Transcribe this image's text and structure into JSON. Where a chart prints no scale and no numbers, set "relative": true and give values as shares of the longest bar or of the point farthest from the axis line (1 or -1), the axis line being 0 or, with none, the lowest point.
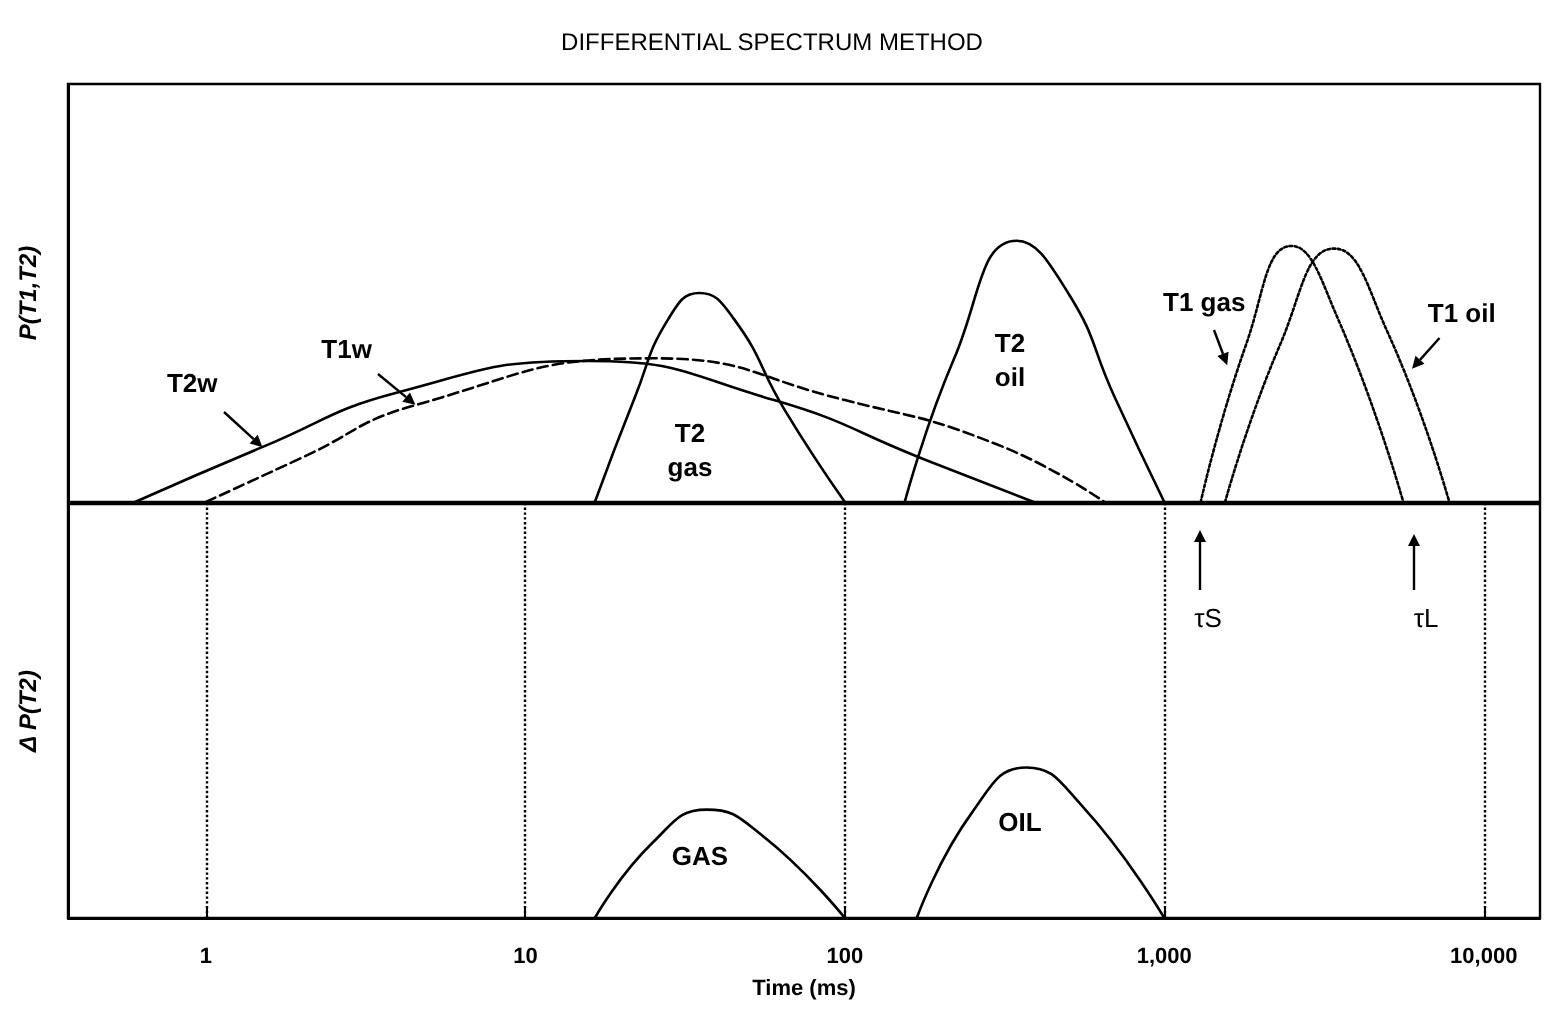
{
  "chart_data": [
    {
      "type": "line",
      "title": "DIFFERENTIAL SPECTRUM METHOD",
      "ylabel": "P(T1,T2)",
      "relative": true,
      "log": "x",
      "xlim": [
        0.37,
        15000
      ],
      "marker": "none",
      "series": [
        {
          "color": "#000000",
          "line_style": "solid",
          "x": [
            0.6,
            1.5,
            4,
            15.6,
            60,
            180,
            390
          ],
          "values": [
            0,
            0.21,
            0.42,
            0.54,
            0.39,
            0.16,
            0
          ]
        },
        {
          "color": "#000000",
          "line_style": "dashed",
          "x": [
            1,
            2,
            4.5,
            25,
            100,
            300,
            650
          ],
          "values": [
            0,
            0.17,
            0.37,
            0.55,
            0.39,
            0.22,
            0
          ]
        },
        {
          "color": "#000000",
          "line_style": "solid",
          "x": [
            16.5,
            22,
            28,
            35,
            45,
            65,
            100
          ],
          "values": [
            0,
            0.4,
            0.7,
            0.8,
            0.7,
            0.35,
            0
          ]
        },
        {
          "color": "#000000",
          "line_style": "solid",
          "x": [
            154,
            220,
            345,
            500,
            700,
            1000
          ],
          "values": [
            0,
            0.55,
            1,
            0.8,
            0.4,
            0
          ]
        },
        {
          "color": "#000000",
          "line_style": "dotted",
          "x": [
            1300,
            1800,
            2500,
            3500,
            5600
          ],
          "values": [
            0,
            0.6,
            0.98,
            0.7,
            0
          ]
        },
        {
          "color": "#000000",
          "line_style": "dotted",
          "x": [
            1550,
            2300,
            3400,
            5000,
            7800
          ],
          "values": [
            0,
            0.6,
            0.97,
            0.65,
            0
          ]
        }
      ],
      "annotations": [
        {
          "text": "T2w",
          "x": 1.5,
          "y": 0.21
        },
        {
          "text": "T1w",
          "x": 4.5,
          "y": 0.37
        },
        "T2 gas",
        "T2 oil",
        {
          "text": "T1 gas",
          "x": 1585,
          "y": 0.52
        },
        {
          "text": "T1 oil",
          "x": 5950,
          "y": 0.51
        }
      ]
    },
    {
      "type": "line",
      "ylabel": "Δ P(T2)",
      "xlabel": "Time (ms)",
      "relative": true,
      "log": "x",
      "xlim": [
        0.37,
        15000
      ],
      "xticks": [
        1,
        10,
        100,
        {
          "value": 1000,
          "label": "1,000"
        },
        {
          "value": 10000,
          "label": "10,000"
        }
      ],
      "marker": "none",
      "series": [
        {
          "color": "#000000",
          "line_style": "solid",
          "x": [
            16.5,
            25,
            37,
            55,
            100
          ],
          "values": [
            0,
            0.5,
            0.72,
            0.55,
            0
          ]
        },
        {
          "color": "#000000",
          "line_style": "solid",
          "x": [
            168,
            250,
            370,
            550,
            1000
          ],
          "values": [
            0,
            0.7,
            1,
            0.75,
            0
          ]
        }
      ],
      "ref_lines": [
        {
          "axis": "x",
          "value": 1,
          "line_style": "dotted",
          "color": "#000000"
        },
        {
          "axis": "x",
          "value": 10,
          "line_style": "dotted",
          "color": "#000000"
        },
        {
          "axis": "x",
          "value": 100,
          "line_style": "dotted",
          "color": "#000000"
        },
        {
          "axis": "x",
          "value": 1000,
          "line_style": "dotted",
          "color": "#000000"
        },
        {
          "axis": "x",
          "value": 10000,
          "line_style": "dotted",
          "color": "#000000"
        }
      ],
      "annotations": [
        "τS",
        "τL",
        "GAS",
        "OIL"
      ]
    }
  ]
}
